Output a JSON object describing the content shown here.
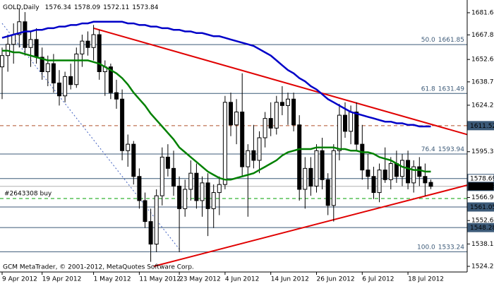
{
  "chart_data": {
    "type": "candlestick",
    "symbol": "GOLD,Daily",
    "copyright": "GCM MetaTrader, © 2001-2012, MetaQuotes Software Corp.",
    "xlim": [
      -0.37,
      81.36
    ],
    "ylim": [
      1520.7,
      1689.5
    ],
    "yticks": [
      {
        "value": 1681.61,
        "label": "1681.61"
      },
      {
        "value": 1667.85,
        "label": "1667.85"
      },
      {
        "value": 1652.6,
        "label": "1652.60"
      },
      {
        "value": 1638.7,
        "label": "1638.70"
      },
      {
        "value": 1624.2,
        "label": "1624.20"
      },
      {
        "value": 1595.35,
        "label": "1595.35"
      },
      {
        "value": 1566.95,
        "label": "1566.95"
      },
      {
        "value": 1552.6,
        "label": "1552.60"
      },
      {
        "value": 1538.1,
        "label": "1538.10"
      },
      {
        "value": 1524.2,
        "label": "1524.20"
      }
    ],
    "xticks": [
      {
        "value": 0,
        "label": "9 Apr 2012"
      },
      {
        "value": 7,
        "label": "19 Apr 2012"
      },
      {
        "value": 16,
        "label": "1 May 2012"
      },
      {
        "value": 24,
        "label": "11 May 2012"
      },
      {
        "value": 31,
        "label": "23 May 2012"
      },
      {
        "value": 39,
        "label": "4 Jun 2012"
      },
      {
        "value": 47,
        "label": "14 Jun 2012"
      },
      {
        "value": 55,
        "label": "26 Jun 2012"
      },
      {
        "value": 63,
        "label": "6 Jul 2012"
      },
      {
        "value": 71,
        "label": "18 Jul 2012"
      }
    ],
    "candles": [
      [
        1648,
        1660,
        1628,
        1655
      ],
      [
        1655,
        1668,
        1645,
        1662
      ],
      [
        1662,
        1675,
        1650,
        1668
      ],
      [
        1668,
        1684,
        1660,
        1676
      ],
      [
        1676,
        1682,
        1655,
        1660
      ],
      [
        1660,
        1670,
        1648,
        1665
      ],
      [
        1665,
        1672,
        1650,
        1654
      ],
      [
        1654,
        1660,
        1640,
        1645
      ],
      [
        1645,
        1655,
        1636,
        1650
      ],
      [
        1650,
        1656,
        1632,
        1638
      ],
      [
        1638,
        1646,
        1624,
        1630
      ],
      [
        1630,
        1645,
        1626,
        1642
      ],
      [
        1642,
        1650,
        1634,
        1637
      ],
      [
        1637,
        1660,
        1635,
        1656
      ],
      [
        1656,
        1668,
        1648,
        1664
      ],
      [
        1664,
        1670,
        1655,
        1660
      ],
      [
        1660,
        1674,
        1652,
        1668
      ],
      [
        1668,
        1671,
        1640,
        1645
      ],
      [
        1645,
        1652,
        1630,
        1648
      ],
      [
        1648,
        1650,
        1628,
        1632
      ],
      [
        1632,
        1640,
        1622,
        1628
      ],
      [
        1628,
        1634,
        1590,
        1596
      ],
      [
        1596,
        1606,
        1586,
        1600
      ],
      [
        1600,
        1602,
        1575,
        1580
      ],
      [
        1580,
        1585,
        1560,
        1565
      ],
      [
        1565,
        1570,
        1548,
        1552
      ],
      [
        1552,
        1560,
        1527,
        1538
      ],
      [
        1538,
        1572,
        1533,
        1568
      ],
      [
        1568,
        1598,
        1562,
        1592
      ],
      [
        1592,
        1600,
        1580,
        1585
      ],
      [
        1585,
        1596,
        1568,
        1574
      ],
      [
        1574,
        1580,
        1533,
        1560
      ],
      [
        1560,
        1578,
        1555,
        1572
      ],
      [
        1572,
        1590,
        1565,
        1582
      ],
      [
        1582,
        1588,
        1560,
        1565
      ],
      [
        1565,
        1580,
        1555,
        1576
      ],
      [
        1576,
        1582,
        1543,
        1560
      ],
      [
        1560,
        1575,
        1548,
        1570
      ],
      [
        1570,
        1580,
        1556,
        1575
      ],
      [
        1575,
        1630,
        1572,
        1626
      ],
      [
        1626,
        1632,
        1605,
        1612
      ],
      [
        1612,
        1628,
        1600,
        1620
      ],
      [
        1620,
        1644,
        1580,
        1586
      ],
      [
        1586,
        1600,
        1555,
        1596
      ],
      [
        1596,
        1612,
        1585,
        1590
      ],
      [
        1590,
        1608,
        1582,
        1604
      ],
      [
        1604,
        1620,
        1598,
        1616
      ],
      [
        1616,
        1626,
        1605,
        1610
      ],
      [
        1610,
        1630,
        1606,
        1626
      ],
      [
        1626,
        1636,
        1618,
        1624
      ],
      [
        1624,
        1632,
        1612,
        1628
      ],
      [
        1628,
        1632,
        1608,
        1612
      ],
      [
        1612,
        1618,
        1565,
        1572
      ],
      [
        1572,
        1592,
        1560,
        1585
      ],
      [
        1585,
        1592,
        1568,
        1574
      ],
      [
        1574,
        1600,
        1570,
        1596
      ],
      [
        1596,
        1604,
        1572,
        1578
      ],
      [
        1578,
        1582,
        1556,
        1562
      ],
      [
        1562,
        1600,
        1552,
        1596
      ],
      [
        1596,
        1625,
        1590,
        1618
      ],
      [
        1618,
        1626,
        1604,
        1608
      ],
      [
        1608,
        1624,
        1600,
        1620
      ],
      [
        1620,
        1626,
        1596,
        1600
      ],
      [
        1600,
        1612,
        1578,
        1584
      ],
      [
        1584,
        1594,
        1572,
        1580
      ],
      [
        1580,
        1586,
        1566,
        1570
      ],
      [
        1570,
        1588,
        1564,
        1584
      ],
      [
        1584,
        1598,
        1576,
        1578
      ],
      [
        1578,
        1592,
        1572,
        1588
      ],
      [
        1588,
        1596,
        1576,
        1580
      ],
      [
        1580,
        1594,
        1574,
        1590
      ],
      [
        1590,
        1596,
        1572,
        1576
      ],
      [
        1576,
        1590,
        1570,
        1586
      ],
      [
        1586,
        1592,
        1574,
        1580
      ],
      [
        1580,
        1588,
        1568,
        1576
      ],
      [
        1576.34,
        1578.09,
        1572.11,
        1573.84
      ]
    ],
    "moving_averages": [
      {
        "color": "#0000c8",
        "values": [
          1666,
          1667,
          1668,
          1669,
          1670,
          1670,
          1671,
          1671,
          1672,
          1672,
          1673,
          1673,
          1674,
          1674,
          1675,
          1675,
          1676,
          1676,
          1676,
          1676,
          1676,
          1676,
          1675,
          1675,
          1674,
          1674,
          1673,
          1673,
          1672,
          1672,
          1671,
          1671,
          1670,
          1670,
          1669,
          1669,
          1668,
          1667,
          1667,
          1666,
          1665,
          1664,
          1663,
          1662,
          1661,
          1659,
          1657,
          1655,
          1652,
          1649,
          1646,
          1644,
          1641,
          1639,
          1636,
          1634,
          1631,
          1628,
          1626,
          1624,
          1622,
          1620,
          1619,
          1618,
          1617,
          1616,
          1615,
          1614,
          1614,
          1613,
          1613,
          1612,
          1612,
          1611,
          1611,
          1611
        ]
      },
      {
        "color": "#008000",
        "values": [
          1658,
          1658,
          1657,
          1657,
          1656,
          1655,
          1654,
          1653,
          1652,
          1652,
          1652,
          1652,
          1652,
          1652,
          1652,
          1652,
          1651,
          1650,
          1648,
          1646,
          1644,
          1641,
          1637,
          1632,
          1628,
          1624,
          1619,
          1615,
          1611,
          1607,
          1603,
          1598,
          1595,
          1592,
          1589,
          1586,
          1583,
          1581,
          1579,
          1578,
          1578,
          1579,
          1580,
          1581,
          1582,
          1584,
          1586,
          1588,
          1590,
          1593,
          1595,
          1596,
          1597,
          1597,
          1597,
          1598,
          1598,
          1598,
          1598,
          1597,
          1597,
          1596,
          1596,
          1595,
          1595,
          1594,
          1592,
          1591,
          1590,
          1588,
          1586,
          1585,
          1584,
          1584,
          1583,
          1583
        ]
      }
    ],
    "trendlines": [
      {
        "color": "#e00000",
        "dash": false,
        "points": [
          [
            16,
            1672
          ],
          [
            81.36,
            1606
          ]
        ]
      },
      {
        "color": "#e00000",
        "dash": false,
        "points": [
          [
            26.5,
            1524.2
          ],
          [
            81.36,
            1574.6
          ]
        ]
      },
      {
        "color": "#4060c0",
        "dash": true,
        "points": [
          [
            0,
            1675
          ],
          [
            31.5,
            1532.6
          ]
        ]
      }
    ],
    "levels": [
      {
        "value": 1661.85,
        "label": "50.0",
        "color": "#3c5a78",
        "dash": false
      },
      {
        "value": 1631.49,
        "label": "61.8",
        "color": "#3c5a78",
        "dash": false
      },
      {
        "value": 1611.52,
        "color": "#b0502a",
        "dash": true,
        "box": "#3c5a78"
      },
      {
        "value": 1593.94,
        "label": "76.4",
        "color": "#3c5a78",
        "dash": false
      },
      {
        "value": 1578.69,
        "color": "#3c5a78",
        "dash": false,
        "box": "#ffffff"
      },
      {
        "value": 1566.3,
        "label": "#2643308 buy",
        "color": "#00a000",
        "dash": true,
        "side": "left"
      },
      {
        "value": 1561.05,
        "color": "#3c5a78",
        "dash": false,
        "box": "#3c5a78"
      },
      {
        "value": 1548.28,
        "color": "#3c5a78",
        "dash": false,
        "box": "#3c5a78"
      },
      {
        "value": 1533.24,
        "label": "100.0",
        "color": "#3c5a78",
        "dash": false
      }
    ],
    "current_color": "#000000"
  }
}
